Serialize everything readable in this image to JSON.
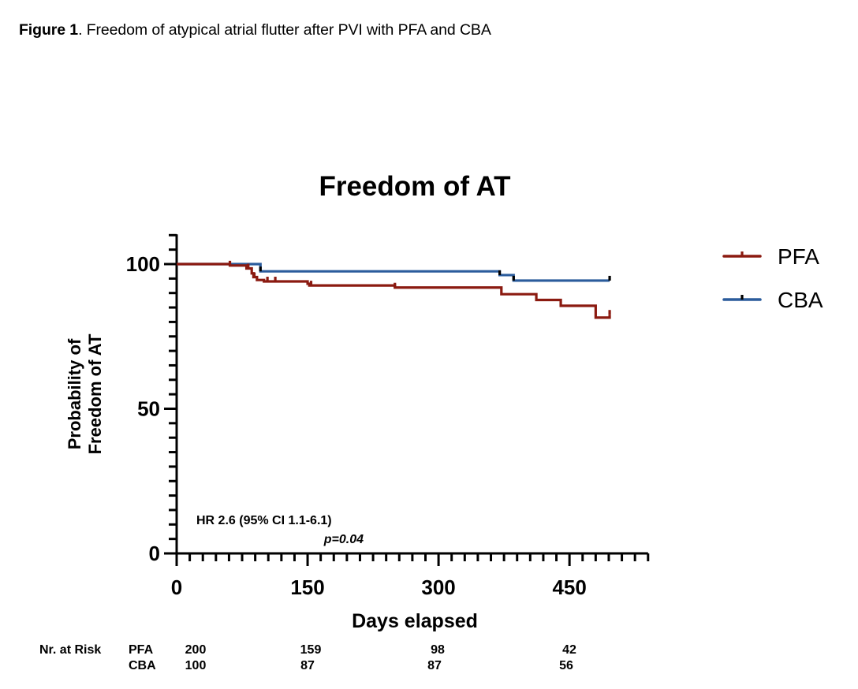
{
  "caption": {
    "label_bold": "Figure 1",
    "text": ". Freedom of atypical atrial flutter after PVI with PFA and CBA"
  },
  "chart_data": {
    "type": "line",
    "subtype": "kaplan-meier step",
    "title": "Freedom of AT",
    "xlabel": "Days elapsed",
    "ylabel_lines": [
      "Probability of",
      "Freedom of AT"
    ],
    "xlim": [
      0,
      540
    ],
    "ylim": [
      0,
      110
    ],
    "x_ticks": [
      0,
      150,
      300,
      450
    ],
    "x_tick_labels": [
      "0",
      "150",
      "300",
      "450"
    ],
    "x_minor_step": 15,
    "y_ticks": [
      0,
      50,
      100
    ],
    "y_tick_labels": [
      "0",
      "50",
      "100"
    ],
    "y_minor_step": 5,
    "grid": false,
    "legend_position": "top-right",
    "series": [
      {
        "name": "PFA",
        "color": "#8B1A10",
        "steps": [
          [
            0,
            100
          ],
          [
            61,
            99.5
          ],
          [
            80,
            98.5
          ],
          [
            86,
            96.8
          ],
          [
            88,
            95.5
          ],
          [
            92,
            94.5
          ],
          [
            100,
            94.0
          ],
          [
            150,
            93.2
          ],
          [
            152,
            92.6
          ],
          [
            250,
            91.9
          ],
          [
            372,
            89.6
          ],
          [
            412,
            87.6
          ],
          [
            440,
            85.6
          ],
          [
            480,
            81.5
          ],
          [
            496,
            82.5
          ]
        ],
        "end_x": 496,
        "censor_x": [
          61,
          82,
          89,
          104,
          113,
          154,
          250,
          496
        ]
      },
      {
        "name": "CBA",
        "color": "#2B5C9C",
        "steps": [
          [
            0,
            100
          ],
          [
            96,
            97.5
          ],
          [
            370,
            96.2
          ],
          [
            386,
            94.3
          ]
        ],
        "end_x": 496,
        "censor_x": [
          96,
          370,
          386,
          496
        ]
      }
    ],
    "annotations": {
      "hr": "HR 2.6 (95% CI 1.1-6.1)",
      "p": "p=0.04"
    },
    "risk_table": {
      "header": "Nr. at Risk",
      "rows": [
        {
          "group": "PFA",
          "values": [
            "200",
            "159",
            "98",
            "42"
          ]
        },
        {
          "group": "CBA",
          "values": [
            "100",
            "87",
            "87",
            "56"
          ]
        }
      ],
      "at_days": [
        0,
        150,
        300,
        450
      ]
    }
  }
}
